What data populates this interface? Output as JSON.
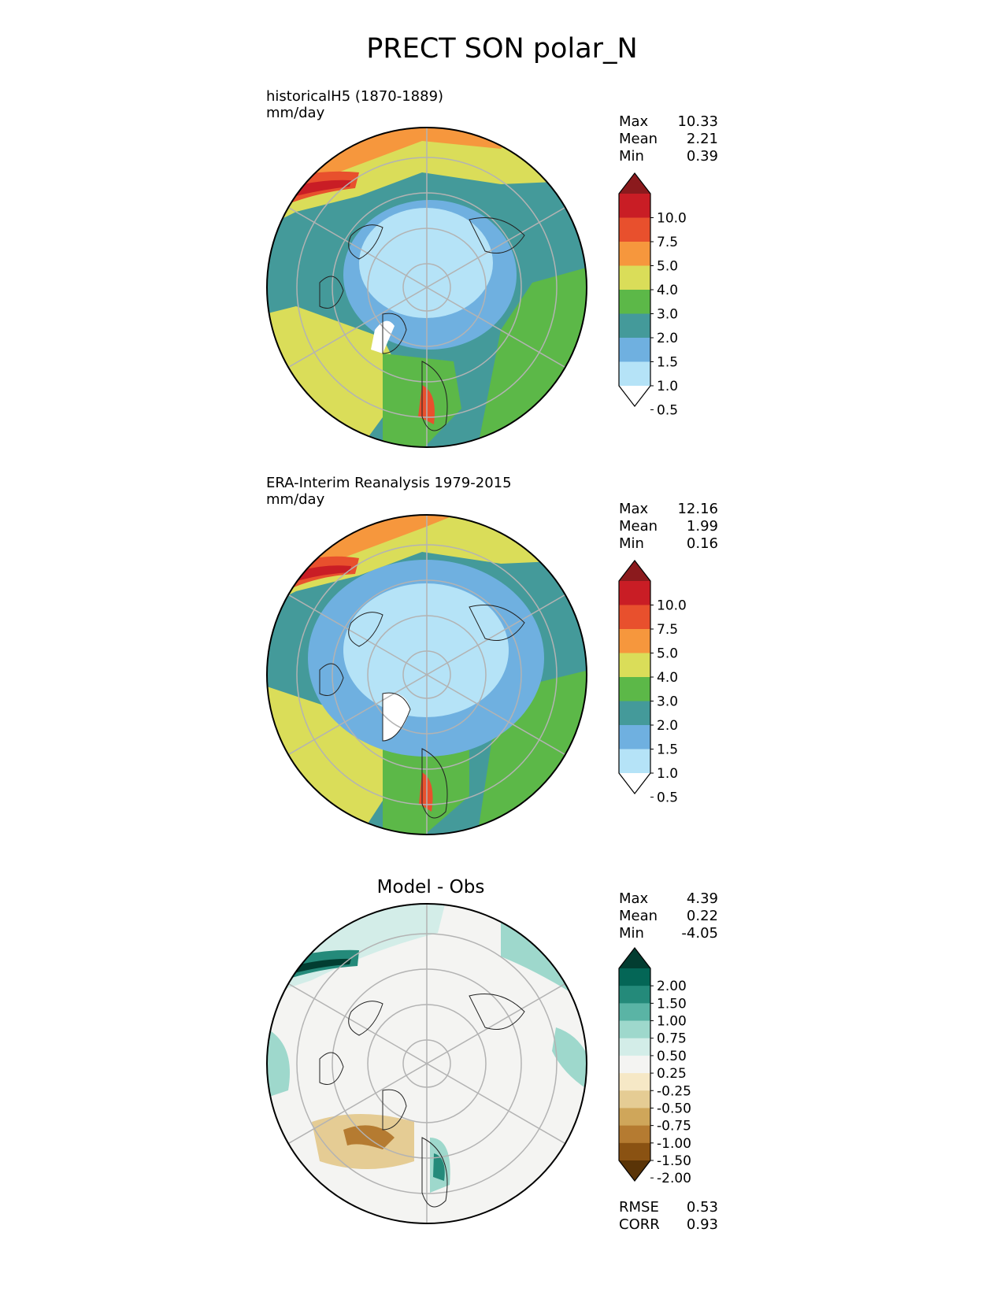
{
  "figure": {
    "title": "PRECT SON polar_N"
  },
  "colors": {
    "precip_levels": [
      "#ffffff",
      "#b5e3f7",
      "#6fb0e0",
      "#449a9a",
      "#5cb848",
      "#dadd59",
      "#f6973d",
      "#e8502d",
      "#c91d25",
      "#8b1a1d"
    ],
    "diff_levels": [
      "#5a3407",
      "#8a5212",
      "#b57b31",
      "#cfa65a",
      "#e5cc94",
      "#f6e8c6",
      "#f4f4f2",
      "#d3ede8",
      "#9ed8cc",
      "#5ab4a5",
      "#248a7a",
      "#046656",
      "#023d31"
    ],
    "grid": "#b3b3b3",
    "outline": "#000000"
  },
  "panels": [
    {
      "title_line1": "historicalH5 (1870-1889)",
      "title_line2": "mm/day",
      "stats": [
        {
          "label": "Max",
          "value": "10.33"
        },
        {
          "label": "Mean",
          "value": "2.21"
        },
        {
          "label": "Min",
          "value": "0.39"
        }
      ],
      "colorbar_ticks": [
        "10.0",
        "7.5",
        "5.0",
        "4.0",
        "3.0",
        "2.0",
        "1.5",
        "1.0",
        "0.5"
      ]
    },
    {
      "title_line1": "ERA-Interim Reanalysis 1979-2015",
      "title_line2": "mm/day",
      "stats": [
        {
          "label": "Max",
          "value": "12.16"
        },
        {
          "label": "Mean",
          "value": "1.99"
        },
        {
          "label": "Min",
          "value": "0.16"
        }
      ],
      "colorbar_ticks": [
        "10.0",
        "7.5",
        "5.0",
        "4.0",
        "3.0",
        "2.0",
        "1.5",
        "1.0",
        "0.5"
      ]
    },
    {
      "title": "Model - Obs",
      "stats": [
        {
          "label": "Max",
          "value": "4.39"
        },
        {
          "label": "Mean",
          "value": "0.22"
        },
        {
          "label": "Min",
          "value": "-4.05"
        }
      ],
      "colorbar_ticks": [
        "2.00",
        "1.50",
        "1.00",
        "0.75",
        "0.50",
        "0.25",
        "-0.25",
        "-0.50",
        "-0.75",
        "-1.00",
        "-1.50",
        "-2.00"
      ],
      "metrics": [
        {
          "label": "RMSE",
          "value": "0.53"
        },
        {
          "label": "CORR",
          "value": "0.93"
        }
      ]
    }
  ],
  "chart_data": [
    {
      "type": "heatmap",
      "title": "historicalH5 (1870-1889)",
      "units": "mm/day",
      "projection": "north polar stereographic",
      "levels": [
        0.5,
        1.0,
        1.5,
        2.0,
        3.0,
        4.0,
        5.0,
        7.5,
        10.0
      ],
      "extend": "both",
      "stats": {
        "max": 10.33,
        "mean": 2.21,
        "min": 0.39
      }
    },
    {
      "type": "heatmap",
      "title": "ERA-Interim Reanalysis 1979-2015",
      "units": "mm/day",
      "projection": "north polar stereographic",
      "levels": [
        0.5,
        1.0,
        1.5,
        2.0,
        3.0,
        4.0,
        5.0,
        7.5,
        10.0
      ],
      "extend": "both",
      "stats": {
        "max": 12.16,
        "mean": 1.99,
        "min": 0.16
      }
    },
    {
      "type": "heatmap",
      "title": "Model - Obs",
      "projection": "north polar stereographic",
      "levels": [
        -2.0,
        -1.5,
        -1.0,
        -0.75,
        -0.5,
        -0.25,
        0.25,
        0.5,
        0.75,
        1.0,
        1.5,
        2.0
      ],
      "extend": "both",
      "stats": {
        "max": 4.39,
        "mean": 0.22,
        "min": -4.05
      },
      "metrics": {
        "rmse": 0.53,
        "corr": 0.93
      }
    }
  ]
}
